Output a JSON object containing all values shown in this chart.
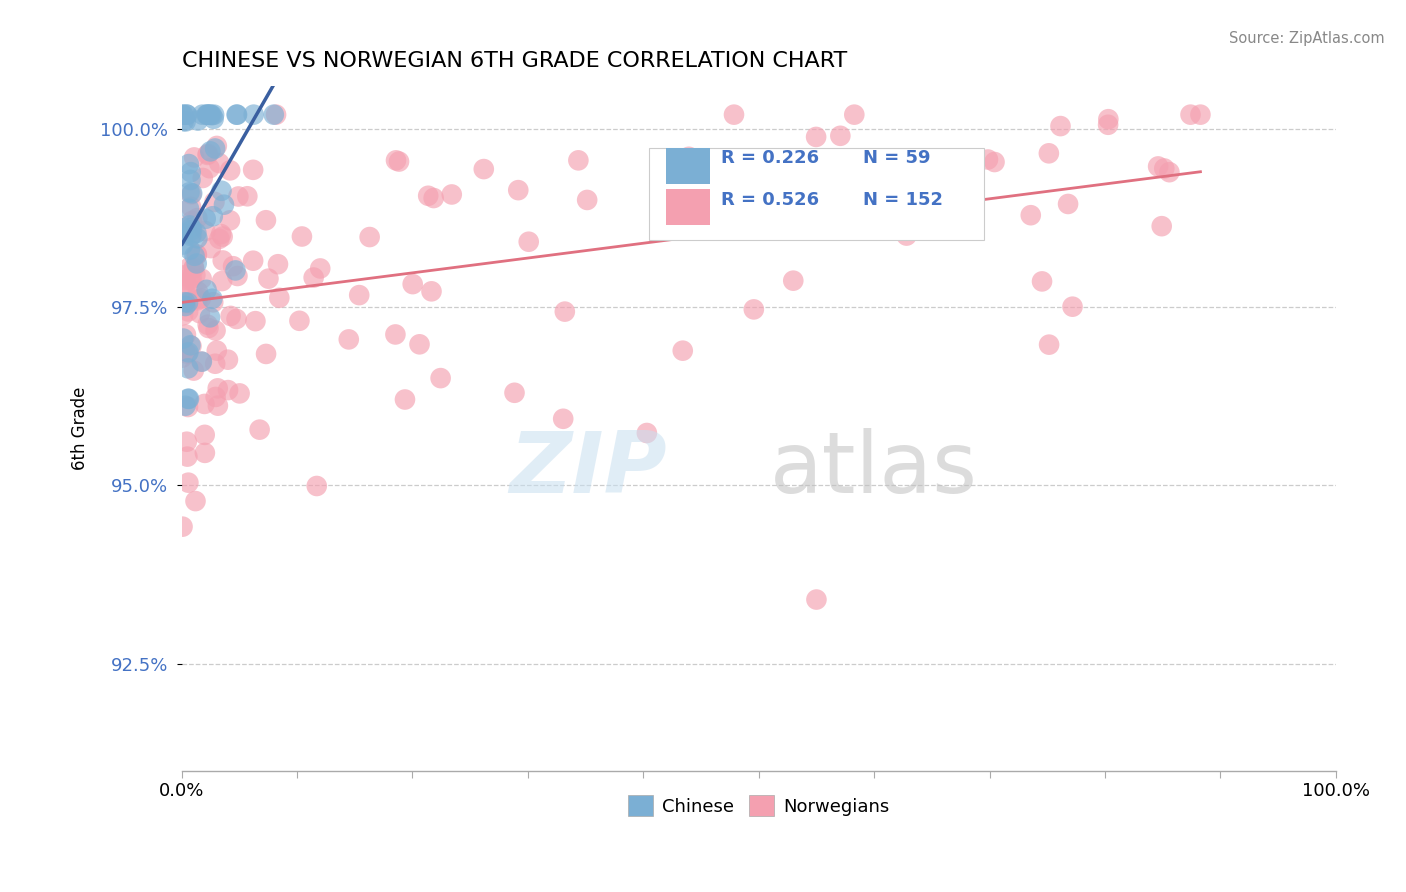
{
  "title": "CHINESE VS NORWEGIAN 6TH GRADE CORRELATION CHART",
  "source_text": "Source: ZipAtlas.com",
  "ylabel": "6th Grade",
  "legend_label_1": "Chinese",
  "legend_label_2": "Norwegians",
  "r1": 0.226,
  "n1": 59,
  "r2": 0.526,
  "n2": 152,
  "xlim": [
    0.0,
    100.0
  ],
  "ylim": [
    91.0,
    100.6
  ],
  "yticks": [
    92.5,
    95.0,
    97.5,
    100.0
  ],
  "ytick_labels": [
    "92.5%",
    "95.0%",
    "97.5%",
    "100.0%"
  ],
  "color_chinese": "#7bafd4",
  "color_norwegian": "#f4a0b0",
  "color_line_chinese": "#3a5fa0",
  "color_line_norwegian": "#e07080",
  "background_color": "#ffffff"
}
